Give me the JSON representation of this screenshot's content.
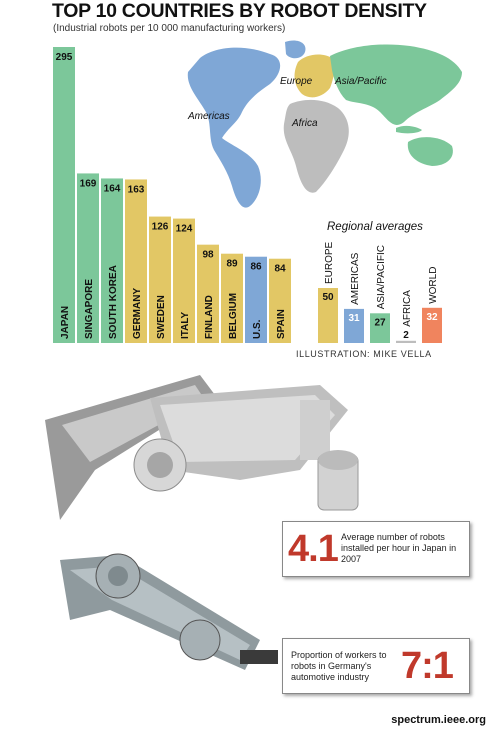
{
  "title": "TOP 10 COUNTRIES BY ROBOT DENSITY",
  "subtitle": "(Industrial robots per 10 000 manufacturing workers)",
  "chart_data": [
    {
      "type": "bar",
      "categories": [
        "JAPAN",
        "SINGAPORE",
        "SOUTH KOREA",
        "GERMANY",
        "SWEDEN",
        "ITALY",
        "FINLAND",
        "BELGIUM",
        "U.S.",
        "SPAIN"
      ],
      "values": [
        295,
        169,
        164,
        163,
        126,
        124,
        98,
        89,
        86,
        84
      ],
      "region_colors": [
        "#7cc79a",
        "#7cc79a",
        "#7cc79a",
        "#e2c765",
        "#e2c765",
        "#e2c765",
        "#e2c765",
        "#e2c765",
        "#7fa7d6",
        "#e2c765"
      ],
      "ylim": [
        0,
        300
      ]
    },
    {
      "type": "bar",
      "title": "Regional averages",
      "categories": [
        "EUROPE",
        "AMERICAS",
        "ASIA/PACIFIC",
        "AFRICA",
        "WORLD"
      ],
      "values": [
        50,
        31,
        27,
        2,
        32
      ],
      "colors": [
        "#e2c765",
        "#7fa7d6",
        "#7cc79a",
        "#bdbdbd",
        "#f0845e"
      ]
    }
  ],
  "map": {
    "labels": [
      "Europe",
      "Asia/Pacific",
      "Americas",
      "Africa"
    ],
    "colors": {
      "americas": "#7fa7d6",
      "europe": "#e2c765",
      "asia_pacific": "#7cc79a",
      "africa": "#bdbdbd"
    }
  },
  "credit": "ILLUSTRATION: MIKE VELLA",
  "stats": [
    {
      "value": "4.1",
      "text": "Average number of robots installed per hour in Japan in 2007"
    },
    {
      "value": "7:1",
      "text": "Proportion of workers to robots in Germany's automotive industry"
    }
  ],
  "footer": "spectrum.ieee.org"
}
